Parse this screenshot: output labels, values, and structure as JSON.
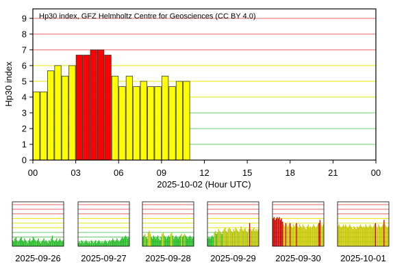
{
  "chart_data": {
    "type": "bar",
    "title": "Hp30 index, GFZ Helmholtz Centre for Geosciences (CC BY 4.0)",
    "ylabel": "Hp30 index",
    "xlabel": "2025-10-02 (Hour UTC)",
    "ylim": [
      0,
      9.6
    ],
    "xlim": [
      0,
      24
    ],
    "yticks": [
      "0",
      "1",
      "2",
      "3",
      "4",
      "5",
      "6",
      "7",
      "8",
      "9"
    ],
    "xticks": [
      "00",
      "03",
      "06",
      "09",
      "12",
      "15",
      "18",
      "21",
      "00"
    ],
    "bar_width_hours": 0.5,
    "values": [
      4.333,
      4.333,
      5.667,
      6.0,
      5.333,
      6.0,
      6.667,
      6.667,
      7.0,
      7.0,
      6.667,
      5.333,
      4.667,
      5.333,
      4.667,
      5.0,
      4.667,
      4.667,
      5.333,
      4.667,
      5.0,
      5.0
    ],
    "grid_levels": [
      1,
      2,
      3,
      4,
      5,
      6,
      7,
      8,
      9
    ],
    "colors": {
      "quiet": "#ffff00",
      "storm": "#ff0000",
      "grid_low": "#66cc66",
      "grid_mid": "#e6e600",
      "grid_high": "#ee6666",
      "bar_stroke": "#333333"
    },
    "thumbnails": [
      {
        "date": "2025-09-26",
        "level": "quiet",
        "values": [
          1.3,
          1.0,
          1.7,
          2.0,
          1.3,
          1.0,
          1.3,
          1.7,
          2.0,
          1.3,
          1.0,
          1.7,
          1.3,
          1.0,
          0.7,
          1.3,
          1.7,
          1.0,
          1.3,
          2.0,
          1.7,
          1.3,
          1.0,
          1.3,
          1.7,
          1.0,
          0.7,
          1.0,
          1.3,
          1.7,
          1.0,
          1.3,
          1.0,
          0.7,
          1.3,
          1.0,
          1.7,
          2.3,
          1.3,
          1.0,
          1.3,
          1.7,
          1.0,
          1.3,
          1.7,
          1.3,
          1.0,
          1.3
        ]
      },
      {
        "date": "2025-09-27",
        "level": "quiet",
        "values": [
          0.7,
          1.0,
          0.7,
          1.3,
          1.0,
          0.7,
          1.0,
          1.3,
          1.0,
          0.7,
          1.0,
          0.7,
          1.3,
          1.0,
          0.7,
          1.0,
          1.3,
          0.7,
          1.0,
          1.3,
          1.0,
          0.7,
          1.0,
          0.7,
          1.0,
          1.3,
          1.0,
          0.7,
          1.0,
          1.3,
          1.0,
          1.3,
          1.7,
          1.3,
          1.0,
          1.3,
          1.7,
          1.3,
          1.0,
          1.3,
          1.7,
          2.0,
          1.7,
          2.0,
          2.3,
          2.0,
          1.7,
          2.0
        ]
      },
      {
        "date": "2025-09-28",
        "level": "mixed",
        "values": [
          2.0,
          2.3,
          2.7,
          2.0,
          1.7,
          3.0,
          3.3,
          2.7,
          2.0,
          1.7,
          2.3,
          2.0,
          1.7,
          2.0,
          2.3,
          1.7,
          1.3,
          2.0,
          2.7,
          3.0,
          2.3,
          2.0,
          1.7,
          2.0,
          2.3,
          2.0,
          2.7,
          3.0,
          2.3,
          1.7,
          2.0,
          2.3,
          2.0,
          1.7,
          2.0,
          2.3,
          2.7,
          2.0,
          2.3,
          2.7,
          2.3,
          2.0,
          1.7,
          2.0,
          2.3,
          2.0,
          1.7,
          2.0
        ]
      },
      {
        "date": "2025-09-29",
        "level": "active",
        "values": [
          1.7,
          2.0,
          1.7,
          2.0,
          2.3,
          2.0,
          3.0,
          3.3,
          2.7,
          3.0,
          3.7,
          3.3,
          3.0,
          2.7,
          3.3,
          3.7,
          4.0,
          3.3,
          3.0,
          3.7,
          4.0,
          3.7,
          3.3,
          3.0,
          3.7,
          3.3,
          4.0,
          3.7,
          3.3,
          3.0,
          3.7,
          4.3,
          3.7,
          3.3,
          3.7,
          4.0,
          3.3,
          3.0,
          3.7,
          5.0,
          3.7,
          3.3,
          3.7,
          4.0,
          3.3,
          3.7,
          3.3,
          3.7
        ]
      },
      {
        "date": "2025-09-30",
        "level": "storm",
        "values": [
          6.0,
          6.3,
          5.7,
          6.0,
          6.3,
          6.0,
          6.3,
          5.7,
          6.0,
          5.3,
          4.7,
          4.3,
          5.0,
          4.7,
          4.3,
          4.7,
          5.0,
          4.3,
          4.0,
          4.7,
          4.3,
          4.7,
          5.0,
          4.3,
          4.0,
          4.7,
          4.3,
          4.0,
          4.7,
          4.3,
          4.0,
          3.7,
          4.3,
          4.7,
          4.0,
          4.3,
          4.0,
          4.3,
          4.7,
          4.3,
          4.0,
          4.3,
          4.7,
          5.0,
          5.7,
          4.7,
          4.3,
          4.7
        ]
      },
      {
        "date": "2025-10-01",
        "level": "active",
        "values": [
          4.3,
          4.7,
          4.3,
          4.0,
          4.3,
          4.7,
          4.3,
          4.7,
          4.3,
          4.0,
          4.3,
          4.7,
          4.3,
          4.0,
          3.7,
          4.3,
          4.0,
          3.7,
          4.3,
          4.0,
          4.3,
          4.7,
          4.3,
          4.0,
          4.3,
          4.0,
          4.7,
          4.3,
          4.0,
          4.3,
          4.7,
          4.3,
          4.0,
          4.3,
          4.7,
          5.0,
          4.3,
          4.0,
          4.7,
          4.3,
          4.0,
          4.3,
          4.7,
          5.7,
          4.7,
          4.3,
          4.0,
          4.3
        ]
      }
    ]
  }
}
